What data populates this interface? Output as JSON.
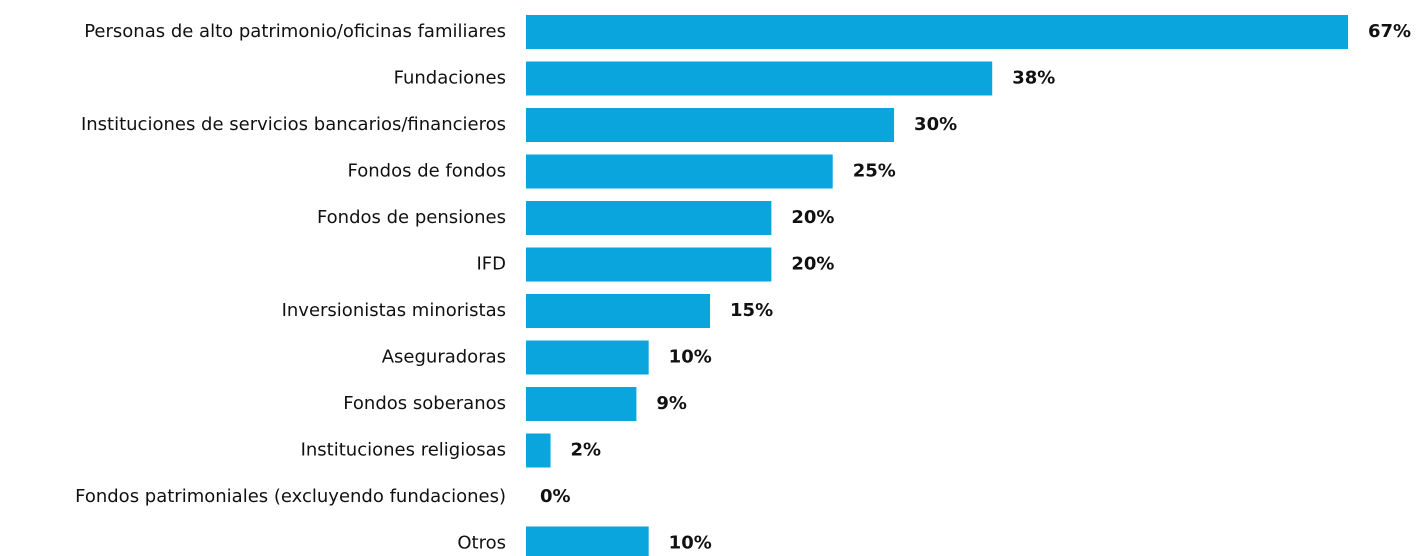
{
  "chart_data": {
    "type": "bar",
    "orientation": "horizontal",
    "categories": [
      "Personas de alto patrimonio/oficinas familiares",
      "Fundaciones",
      "Instituciones de servicios bancarios/financieros",
      "Fondos de fondos",
      "Fondos de pensiones",
      "IFD",
      "Inversionistas minoristas",
      "Aseguradoras",
      "Fondos soberanos",
      "Instituciones religiosas",
      "Fondos patrimoniales (excluyendo fundaciones)",
      "Otros"
    ],
    "values": [
      67,
      38,
      30,
      25,
      20,
      20,
      15,
      10,
      9,
      2,
      0,
      10
    ],
    "value_labels": [
      "67%",
      "38%",
      "30%",
      "25%",
      "20%",
      "20%",
      "15%",
      "10%",
      "9%",
      "2%",
      "0%",
      "10%"
    ],
    "color": "#0ba5de"
  }
}
